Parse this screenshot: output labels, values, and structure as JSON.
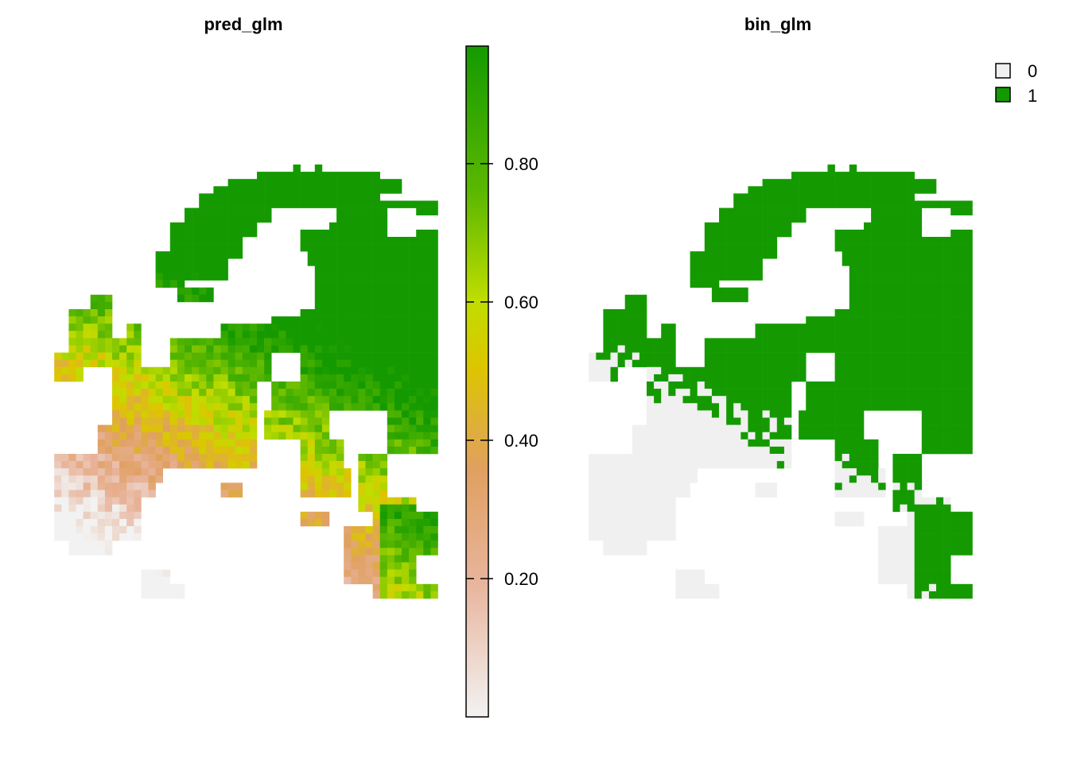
{
  "panels": [
    {
      "title": "pred_glm",
      "colorbar": {
        "ticks": [
          {
            "label": "0.80",
            "value": 0.8
          },
          {
            "label": "0.60",
            "value": 0.6
          },
          {
            "label": "0.40",
            "value": 0.4
          },
          {
            "label": "0.20",
            "value": 0.2
          }
        ],
        "value_range": [
          0,
          0.97
        ],
        "palette": [
          "#f2f2f2",
          "#e8b49c",
          "#e0a060",
          "#ddc500",
          "#c0dd00",
          "#5cb800",
          "#149a00"
        ]
      }
    },
    {
      "title": "bin_glm",
      "legend": [
        {
          "label": "0",
          "color": "#f0f0f0"
        },
        {
          "label": "1",
          "color": "#149a00"
        }
      ]
    }
  ],
  "colors": {
    "absent": "#f0f0f0",
    "present": "#149a00"
  }
}
